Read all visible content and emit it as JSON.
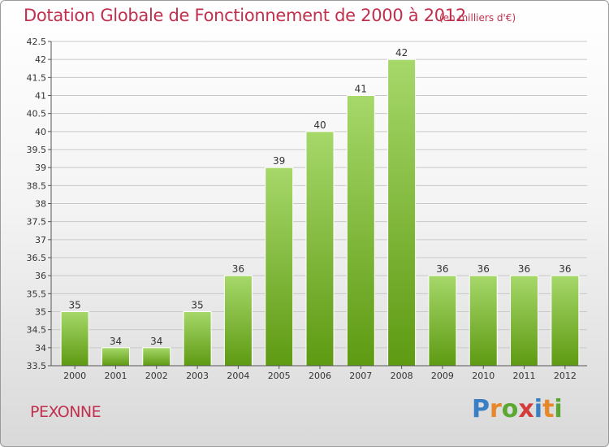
{
  "header": {
    "title": "Dotation Globale de Fonctionnement de 2000 à 2012",
    "unit": "(en milliers d'€)"
  },
  "footer": {
    "commune": "PEXONNE",
    "brand_letters": [
      "P",
      "r",
      "o",
      "x",
      "i",
      "t",
      "i"
    ],
    "brand_colors": [
      "#3a7fc4",
      "#e8862a",
      "#5aa832",
      "#d43c3c",
      "#3a7fc4",
      "#e8862a",
      "#5aa832"
    ]
  },
  "colors": {
    "bar_top": "#a6d86a",
    "bar_bottom": "#5e9a12",
    "grid": "#c8c8c8",
    "axis": "#555555"
  },
  "chart_data": {
    "type": "bar",
    "title": "Dotation Globale de Fonctionnement de 2000 à 2012",
    "xlabel": "",
    "ylabel": "",
    "ylim": [
      33.5,
      42.5
    ],
    "ytick_step": 0.5,
    "yticks": [
      "33.5",
      "34",
      "34.5",
      "35",
      "35.5",
      "36",
      "36.5",
      "37",
      "37.5",
      "38",
      "38.5",
      "39",
      "39.5",
      "40",
      "40.5",
      "41",
      "41.5",
      "42",
      "42.5"
    ],
    "categories": [
      "2000",
      "2001",
      "2002",
      "2003",
      "2004",
      "2005",
      "2006",
      "2007",
      "2008",
      "2009",
      "2010",
      "2011",
      "2012"
    ],
    "values": [
      35,
      34,
      34,
      35,
      36,
      39,
      40,
      41,
      42,
      36,
      36,
      36,
      36
    ],
    "labels": [
      "35",
      "34",
      "34",
      "35",
      "36",
      "39",
      "40",
      "41",
      "42",
      "36",
      "36",
      "36",
      "36"
    ],
    "grid": true
  }
}
